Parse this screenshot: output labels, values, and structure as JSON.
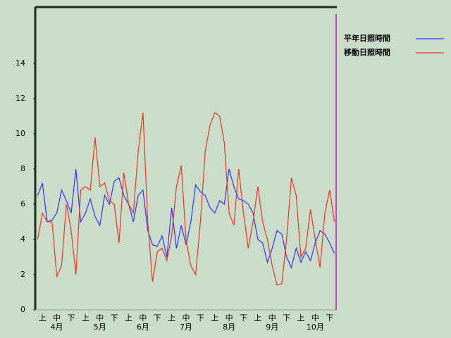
{
  "chart_data": {
    "type": "line",
    "categories": [
      null,
      "上",
      null,
      null,
      "中",
      null,
      null,
      "下",
      null,
      null,
      "上",
      null,
      null,
      "中",
      null,
      null,
      "下",
      null,
      null,
      "上",
      null,
      null,
      "中",
      null,
      null,
      "下",
      null,
      null,
      "上",
      null,
      null,
      "中",
      null,
      null,
      "下",
      null,
      null,
      "上",
      null,
      null,
      "中",
      null,
      null,
      "下",
      null,
      null,
      "上",
      null,
      null,
      "中",
      null,
      null,
      "下",
      null,
      null,
      "上",
      null,
      null,
      "中",
      null,
      null,
      "下",
      null
    ],
    "months": [
      "4月",
      "5月",
      "6月",
      "7月",
      "8月",
      "9月",
      "10月"
    ],
    "series": [
      {
        "name": "平年日照時間",
        "color": "#3333ff",
        "values": [
          6.5,
          7.2,
          5.0,
          5.1,
          5.5,
          6.8,
          6.2,
          5.5,
          8.0,
          5.0,
          5.5,
          6.3,
          5.3,
          4.8,
          6.5,
          6.0,
          7.3,
          7.5,
          6.5,
          6.0,
          5.0,
          6.5,
          6.8,
          4.5,
          3.7,
          3.6,
          4.2,
          3.0,
          5.8,
          3.5,
          4.8,
          3.7,
          5.0,
          7.1,
          6.7,
          6.5,
          5.8,
          5.5,
          6.2,
          6.0,
          8.0,
          7.0,
          6.3,
          6.2,
          6.0,
          5.5,
          4.0,
          3.8,
          2.7,
          3.5,
          4.5,
          4.3,
          3.0,
          2.4,
          3.5,
          2.7,
          3.3,
          2.8,
          3.8,
          4.5,
          4.3,
          3.8,
          3.2
        ]
      },
      {
        "name": "移動日照時間",
        "color": "#ee3322",
        "values": [
          4.0,
          5.5,
          5.0,
          5.0,
          1.9,
          2.5,
          6.0,
          4.5,
          2.0,
          6.8,
          7.0,
          6.8,
          9.8,
          7.0,
          7.2,
          6.2,
          6.0,
          3.8,
          7.8,
          6.0,
          5.5,
          9.0,
          11.2,
          5.0,
          1.6,
          3.3,
          3.5,
          2.8,
          4.2,
          7.0,
          8.2,
          4.0,
          2.5,
          2.0,
          5.0,
          9.0,
          10.5,
          11.2,
          11.0,
          9.5,
          5.5,
          4.8,
          8.0,
          5.5,
          3.5,
          5.0,
          7.0,
          5.0,
          4.0,
          2.5,
          1.4,
          1.5,
          4.0,
          7.5,
          6.5,
          3.0,
          3.5,
          5.7,
          4.0,
          2.4,
          5.5,
          6.8,
          5.0
        ]
      }
    ],
    "ylim": [
      0,
      17.2
    ],
    "yticks": [
      0,
      2,
      4,
      6,
      8,
      10,
      12,
      14
    ],
    "grid": false
  }
}
